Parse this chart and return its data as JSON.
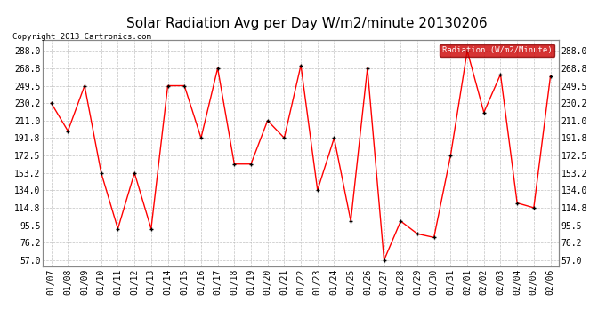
{
  "title": "Solar Radiation Avg per Day W/m2/minute 20130206",
  "copyright": "Copyright 2013 Cartronics.com",
  "legend_label": "Radiation (W/m2/Minute)",
  "dates": [
    "01/07",
    "01/08",
    "01/09",
    "01/10",
    "01/11",
    "01/12",
    "01/13",
    "01/14",
    "01/15",
    "01/16",
    "01/17",
    "01/18",
    "01/19",
    "01/20",
    "01/21",
    "01/22",
    "01/23",
    "01/24",
    "01/25",
    "01/26",
    "01/27",
    "01/28",
    "01/29",
    "01/30",
    "01/31",
    "02/01",
    "02/02",
    "02/03",
    "02/04",
    "02/05",
    "02/06"
  ],
  "values": [
    230.2,
    199.5,
    249.5,
    153.2,
    91.5,
    153.2,
    91.5,
    249.5,
    249.5,
    191.8,
    268.8,
    163.0,
    163.0,
    211.0,
    191.8,
    272.0,
    134.0,
    191.8,
    100.0,
    268.8,
    57.0,
    100.0,
    86.0,
    82.0,
    172.5,
    288.0,
    220.0,
    262.0,
    120.0,
    114.8,
    260.0
  ],
  "y_ticks": [
    57.0,
    76.2,
    95.5,
    114.8,
    134.0,
    153.2,
    172.5,
    191.8,
    211.0,
    230.2,
    249.5,
    268.8,
    288.0
  ],
  "ylim": [
    50.0,
    300.0
  ],
  "line_color": "red",
  "marker_color": "black",
  "bg_color": "#ffffff",
  "plot_bg_color": "#ffffff",
  "grid_color": "#bbbbbb",
  "title_fontsize": 11,
  "tick_fontsize": 7,
  "legend_bg": "#cc0000",
  "legend_text_color": "#ffffff"
}
